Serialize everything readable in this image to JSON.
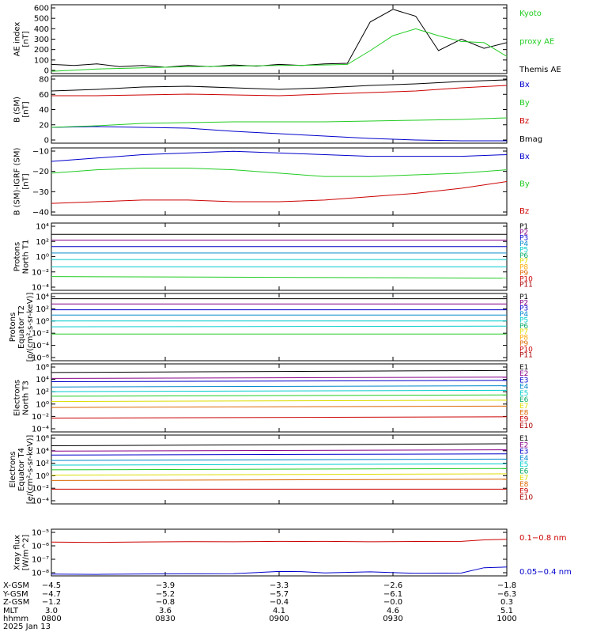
{
  "panels": [
    {
      "id": "ae",
      "ylabel": [
        "AE index",
        "[nT]"
      ],
      "yticks": [
        "0",
        "100",
        "200",
        "300",
        "400",
        "500",
        "600"
      ],
      "legend": [
        {
          "text": "Kyoto",
          "color": "#22cc22"
        },
        {
          "text": "proxy AE",
          "color": "#22cc22"
        },
        {
          "text": "Themis AE",
          "color": "#000000"
        }
      ]
    },
    {
      "id": "bsm",
      "ylabel": [
        "B (SM)",
        "[nT]"
      ],
      "yticks": [
        "0",
        "20",
        "40",
        "60",
        "80"
      ],
      "legend": [
        {
          "text": "Bx",
          "color": "#0000cc"
        },
        {
          "text": "By",
          "color": "#22cc22"
        },
        {
          "text": "Bz",
          "color": "#cc0000"
        },
        {
          "text": "Bmag",
          "color": "#000000"
        }
      ]
    },
    {
      "id": "bigrf",
      "ylabel": [
        "B (SM)-IGRF (SM)",
        "[nT]"
      ],
      "yticks": [
        "−40",
        "−30",
        "−20",
        "−10"
      ],
      "legend": [
        {
          "text": "Bx",
          "color": "#0000cc"
        },
        {
          "text": "By",
          "color": "#22cc22"
        },
        {
          "text": "Bz",
          "color": "#cc0000"
        }
      ]
    },
    {
      "id": "pn",
      "ylabel": [
        "Protons",
        "North T1"
      ],
      "yticks": [
        "10⁻⁴",
        "10⁻²",
        "10⁰",
        "10²",
        "10⁴"
      ],
      "legend": [
        {
          "text": "P1",
          "color": "#000000"
        },
        {
          "text": "P2",
          "color": "#880088"
        },
        {
          "text": "P3",
          "color": "#0000cc"
        },
        {
          "text": "P4",
          "color": "#0088cc"
        },
        {
          "text": "P5",
          "color": "#00cccc"
        },
        {
          "text": "P6",
          "color": "#00aa66"
        },
        {
          "text": "P7",
          "color": "#dddd00"
        },
        {
          "text": "P8",
          "color": "#ffaa00"
        },
        {
          "text": "P9",
          "color": "#dd6600"
        },
        {
          "text": "P10",
          "color": "#cc0000"
        },
        {
          "text": "P11",
          "color": "#aa0000"
        }
      ]
    },
    {
      "id": "pe",
      "ylabel": [
        "Protons",
        "Equator T2",
        "[p/(cm²-s-sr-keV)]"
      ],
      "yticks": [
        "10⁻⁶",
        "10⁻⁴",
        "10⁻²",
        "10⁰",
        "10²",
        "10⁴"
      ],
      "legend": [
        {
          "text": "P1",
          "color": "#000000"
        },
        {
          "text": "P2",
          "color": "#880088"
        },
        {
          "text": "P3",
          "color": "#0000cc"
        },
        {
          "text": "P4",
          "color": "#0088cc"
        },
        {
          "text": "P5",
          "color": "#00cccc"
        },
        {
          "text": "P6",
          "color": "#00aa66"
        },
        {
          "text": "P7",
          "color": "#dddd00"
        },
        {
          "text": "P8",
          "color": "#ffaa00"
        },
        {
          "text": "P9",
          "color": "#dd6600"
        },
        {
          "text": "P10",
          "color": "#cc0000"
        },
        {
          "text": "P11",
          "color": "#aa0000"
        }
      ]
    },
    {
      "id": "en",
      "ylabel": [
        "Electrons",
        "North T3"
      ],
      "yticks": [
        "10⁻⁴",
        "10⁻²",
        "10⁰",
        "10²",
        "10⁴",
        "10⁶"
      ],
      "legend": [
        {
          "text": "E1",
          "color": "#000000"
        },
        {
          "text": "E2",
          "color": "#880088"
        },
        {
          "text": "E3",
          "color": "#0000cc"
        },
        {
          "text": "E4",
          "color": "#0088cc"
        },
        {
          "text": "E5",
          "color": "#00cccc"
        },
        {
          "text": "E6",
          "color": "#00aa66"
        },
        {
          "text": "E7",
          "color": "#dddd00"
        },
        {
          "text": "E8",
          "color": "#dd6600"
        },
        {
          "text": "E9",
          "color": "#cc0000"
        },
        {
          "text": "E10",
          "color": "#aa0000"
        }
      ]
    },
    {
      "id": "ee",
      "ylabel": [
        "Electrons",
        "Equator T4",
        "[e/(cm²-s-sr-keV)]"
      ],
      "yticks": [
        "10⁻⁴",
        "10⁻²",
        "10⁰",
        "10²",
        "10⁴",
        "10⁶"
      ],
      "legend": [
        {
          "text": "E1",
          "color": "#000000"
        },
        {
          "text": "E2",
          "color": "#880088"
        },
        {
          "text": "E3",
          "color": "#0000cc"
        },
        {
          "text": "E4",
          "color": "#0088cc"
        },
        {
          "text": "E5",
          "color": "#00cccc"
        },
        {
          "text": "E6",
          "color": "#00aa66"
        },
        {
          "text": "E7",
          "color": "#dddd00"
        },
        {
          "text": "E8",
          "color": "#dd6600"
        },
        {
          "text": "E9",
          "color": "#cc0000"
        },
        {
          "text": "E10",
          "color": "#aa0000"
        }
      ]
    },
    {
      "id": "xray",
      "ylabel": [
        "Xray flux",
        "[W/m^2]"
      ],
      "yticks": [
        "10⁻⁸",
        "10⁻⁷",
        "10⁻⁶",
        "10⁻⁵"
      ],
      "legend": [
        {
          "text": "0.1−0.8 nm",
          "color": "#cc0000"
        },
        {
          "text": "0.05−0.4 nm",
          "color": "#0000cc"
        }
      ]
    }
  ],
  "ephemeris": {
    "labels": [
      "X-GSM",
      "Y-GSM",
      "Z-GSM",
      "MLT",
      "hhmm",
      "2025 Jan 13"
    ],
    "columns": [
      [
        "−4.5",
        "−4.7",
        "−1.2",
        "3.0",
        "0800"
      ],
      [
        "−3.9",
        "−5.2",
        "−0.8",
        "3.6",
        "0830"
      ],
      [
        "−3.3",
        "−5.7",
        "−0.4",
        "4.1",
        "0900"
      ],
      [
        "−2.6",
        "−6.1",
        "−0.0",
        "4.6",
        "0930"
      ],
      [
        "−1.8",
        "−6.3",
        "0.3",
        "5.1",
        "1000"
      ]
    ]
  },
  "chart_data": [
    {
      "type": "line",
      "id": "ae",
      "ylim": [
        0,
        600
      ],
      "x": [
        0,
        6,
        12,
        18,
        24,
        30,
        36,
        42,
        48,
        54,
        60,
        66,
        72,
        78,
        84,
        90,
        96,
        102,
        108,
        114,
        120
      ],
      "series": [
        {
          "name": "Themis AE",
          "color": "#000000",
          "values": [
            80,
            70,
            85,
            60,
            70,
            55,
            70,
            60,
            75,
            65,
            80,
            70,
            85,
            90,
            450,
            560,
            500,
            200,
            300,
            220,
            270
          ]
        },
        {
          "name": "Kyoto proxy AE",
          "color": "#22cc22",
          "values": [
            20,
            30,
            40,
            45,
            50,
            55,
            60,
            62,
            65,
            68,
            70,
            72,
            75,
            80,
            200,
            330,
            390,
            330,
            280,
            270,
            150
          ]
        }
      ]
    },
    {
      "type": "line",
      "id": "bsm",
      "ylim": [
        0,
        85
      ],
      "x": [
        0,
        12,
        24,
        36,
        48,
        60,
        72,
        84,
        96,
        108,
        120
      ],
      "series": [
        {
          "name": "Bx",
          "color": "#0000cc",
          "values": [
            20,
            21,
            20,
            19,
            15,
            12,
            9,
            6,
            4,
            3,
            3
          ]
        },
        {
          "name": "By",
          "color": "#22cc22",
          "values": [
            20,
            22,
            25,
            26,
            27,
            27,
            27,
            28,
            29,
            30,
            32
          ]
        },
        {
          "name": "Bz",
          "color": "#cc0000",
          "values": [
            60,
            60,
            61,
            62,
            61,
            60,
            62,
            64,
            66,
            70,
            73
          ]
        },
        {
          "name": "Bmag",
          "color": "#000000",
          "values": [
            66,
            68,
            71,
            72,
            70,
            68,
            70,
            73,
            75,
            78,
            80
          ]
        }
      ]
    },
    {
      "type": "line",
      "id": "bigrf",
      "ylim": [
        -42,
        -2
      ],
      "x": [
        0,
        12,
        24,
        36,
        48,
        60,
        72,
        84,
        96,
        108,
        120
      ],
      "series": [
        {
          "name": "Bx",
          "color": "#0000cc",
          "values": [
            -10,
            -8,
            -6,
            -5,
            -4,
            -5,
            -6,
            -7,
            -7,
            -7,
            -6
          ]
        },
        {
          "name": "By",
          "color": "#22cc22",
          "values": [
            -17,
            -15,
            -14,
            -14,
            -15,
            -17,
            -19,
            -19,
            -18,
            -17,
            -15
          ]
        },
        {
          "name": "Bz",
          "color": "#cc0000",
          "values": [
            -35,
            -34,
            -33,
            -33,
            -34,
            -34,
            -33,
            -31,
            -29,
            -26,
            -22
          ]
        }
      ]
    },
    {
      "type": "line",
      "id": "pn",
      "ylog": true,
      "ylim": [
        -4.3,
        4
      ],
      "x": [
        0,
        120
      ],
      "series": [
        {
          "name": "P1",
          "color": "#000000",
          "values": [
            2.6,
            2.6
          ]
        },
        {
          "name": "P2",
          "color": "#880088",
          "values": [
            1.9,
            1.9
          ]
        },
        {
          "name": "P3",
          "color": "#0000cc",
          "values": [
            1.1,
            1.1
          ]
        },
        {
          "name": "P4",
          "color": "#0088cc",
          "values": [
            0.3,
            0.3
          ]
        },
        {
          "name": "P5",
          "color": "#00cccc",
          "values": [
            -0.5,
            -0.5
          ]
        },
        {
          "name": "P6",
          "color": "#00cccc",
          "values": [
            -1.4,
            -1.4
          ]
        },
        {
          "name": "P7",
          "color": "#22cc22",
          "values": [
            -2.6,
            -2.8
          ]
        }
      ]
    },
    {
      "type": "line",
      "id": "pe",
      "ylog": true,
      "ylim": [
        -6.3,
        4
      ],
      "x": [
        0,
        120
      ],
      "series": [
        {
          "name": "P1",
          "color": "#000000",
          "values": [
            3.2,
            3.2
          ]
        },
        {
          "name": "P2",
          "color": "#880088",
          "values": [
            2.4,
            2.4
          ]
        },
        {
          "name": "P3",
          "color": "#0000cc",
          "values": [
            1.5,
            1.5
          ]
        },
        {
          "name": "P4",
          "color": "#0088cc",
          "values": [
            0.7,
            0.7
          ]
        },
        {
          "name": "P5",
          "color": "#00cccc",
          "values": [
            -0.2,
            -0.2
          ]
        },
        {
          "name": "P6",
          "color": "#00cccc",
          "values": [
            -1.1,
            -1.0
          ]
        },
        {
          "name": "P7",
          "color": "#22cc22",
          "values": [
            -2.2,
            -2.2
          ]
        }
      ]
    },
    {
      "type": "line",
      "id": "en",
      "ylog": true,
      "ylim": [
        -4.3,
        6
      ],
      "x": [
        0,
        120
      ],
      "series": [
        {
          "name": "E1",
          "color": "#000000",
          "values": [
            4.7,
            5.0
          ]
        },
        {
          "name": "E2",
          "color": "#880088",
          "values": [
            3.8,
            4.0
          ]
        },
        {
          "name": "E3",
          "color": "#0000cc",
          "values": [
            3.3,
            3.5
          ]
        },
        {
          "name": "E4",
          "color": "#0088cc",
          "values": [
            2.5,
            2.7
          ]
        },
        {
          "name": "E5",
          "color": "#00cccc",
          "values": [
            1.8,
            2.0
          ]
        },
        {
          "name": "E6",
          "color": "#22cc22",
          "values": [
            1.1,
            1.3
          ]
        },
        {
          "name": "E7",
          "color": "#dddd00",
          "values": [
            0.3,
            0.5
          ]
        },
        {
          "name": "E8",
          "color": "#dd6600",
          "values": [
            -0.6,
            -0.4
          ]
        },
        {
          "name": "E9",
          "color": "#cc0000",
          "values": [
            -2.2,
            -2.0
          ]
        }
      ]
    },
    {
      "type": "line",
      "id": "ee",
      "ylog": true,
      "ylim": [
        -4.3,
        6
      ],
      "x": [
        0,
        120
      ],
      "series": [
        {
          "name": "E1",
          "color": "#000000",
          "values": [
            4.4,
            4.7
          ]
        },
        {
          "name": "E2",
          "color": "#880088",
          "values": [
            3.6,
            3.8
          ]
        },
        {
          "name": "E3",
          "color": "#0000cc",
          "values": [
            3.0,
            3.2
          ]
        },
        {
          "name": "E4",
          "color": "#0088cc",
          "values": [
            2.2,
            2.4
          ]
        },
        {
          "name": "E5",
          "color": "#00cccc",
          "values": [
            1.5,
            1.7
          ]
        },
        {
          "name": "E6",
          "color": "#22cc22",
          "values": [
            0.8,
            1.0
          ]
        },
        {
          "name": "E7",
          "color": "#dddd00",
          "values": [
            0.0,
            0.2
          ]
        },
        {
          "name": "E8",
          "color": "#dd6600",
          "values": [
            -0.8,
            -0.6
          ]
        },
        {
          "name": "E9",
          "color": "#cc0000",
          "values": [
            -2.1,
            -2.1
          ]
        }
      ]
    },
    {
      "type": "line",
      "id": "xray",
      "ylog": true,
      "ylim": [
        -8.15,
        -5
      ],
      "x": [
        0,
        12,
        24,
        36,
        48,
        60,
        66,
        72,
        84,
        96,
        108,
        114,
        120
      ],
      "series": [
        {
          "name": "0.1−0.8 nm",
          "color": "#cc0000",
          "values": [
            -5.87,
            -5.89,
            -5.86,
            -5.84,
            -5.85,
            -5.82,
            -5.83,
            -5.82,
            -5.85,
            -5.83,
            -5.82,
            -5.72,
            -5.68
          ]
        },
        {
          "name": "0.05−0.4 nm",
          "color": "#0000cc",
          "values": [
            -8.03,
            -8.05,
            -8.02,
            -8.01,
            -8.0,
            -7.85,
            -7.86,
            -7.95,
            -7.88,
            -7.98,
            -7.96,
            -7.6,
            -7.55
          ]
        }
      ]
    }
  ]
}
